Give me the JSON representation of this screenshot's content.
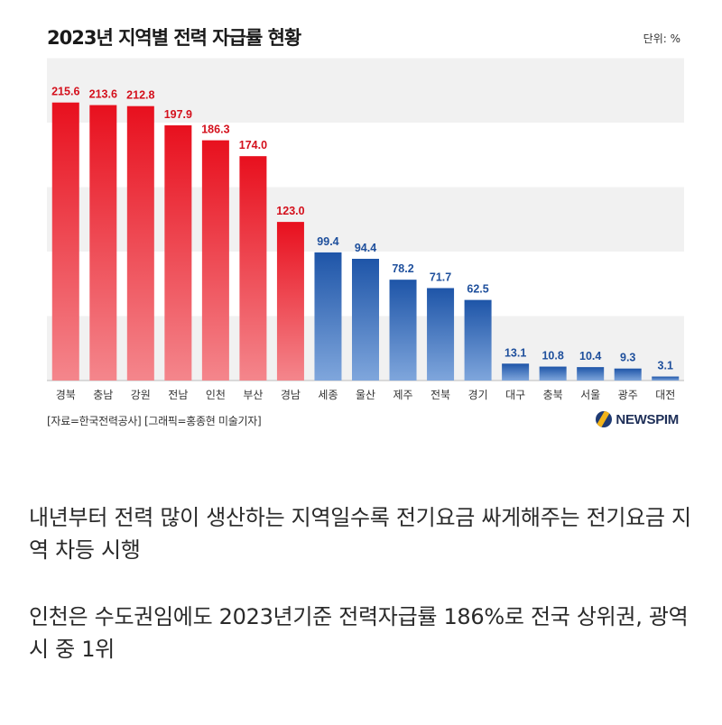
{
  "chart_data": {
    "type": "bar",
    "title": "2023년 지역별 전력 자급률 현황",
    "unit": "단위: %",
    "categories": [
      "경북",
      "충남",
      "강원",
      "전남",
      "인천",
      "부산",
      "경남",
      "세종",
      "울산",
      "제주",
      "전북",
      "경기",
      "대구",
      "충북",
      "서울",
      "광주",
      "대전"
    ],
    "values": [
      215.6,
      213.6,
      212.8,
      197.9,
      186.3,
      174.0,
      123.0,
      99.4,
      94.4,
      78.2,
      71.7,
      62.5,
      13.1,
      10.8,
      10.4,
      9.3,
      3.1
    ],
    "value_labels": [
      "215.6",
      "213.6",
      "212.8",
      "197.9",
      "186.3",
      "174.0",
      "123.0",
      "99.4",
      "94.4",
      "78.2",
      "71.7",
      "62.5",
      "13.1",
      "10.8",
      "10.4",
      "9.3",
      "3.1"
    ],
    "ylim": [
      0,
      250
    ],
    "grid": "horizontal bands",
    "threshold": 100,
    "colors": {
      "above": "#e8101e",
      "above_light": "#f4868c",
      "below": "#1e55a8",
      "below_light": "#7fa6dc",
      "above_label": "#d4101c",
      "below_label": "#1e4f9c",
      "band": "#f1f1f1"
    }
  },
  "source_note": "[자료=한국전력공사] [그래픽=홍종현 미술기자]",
  "brand": {
    "name": "NEWSPIM",
    "icon": "newspim-logo-icon"
  },
  "article": {
    "paragraph_1": "내년부터 전력 많이 생산하는 지역일수록 전기요금 싸게해주는 전기요금 지역 차등 시행",
    "paragraph_2": "인천은 수도권임에도 2023년기준 전력자급률 186%로 전국 상위권, 광역시 중 1위"
  }
}
